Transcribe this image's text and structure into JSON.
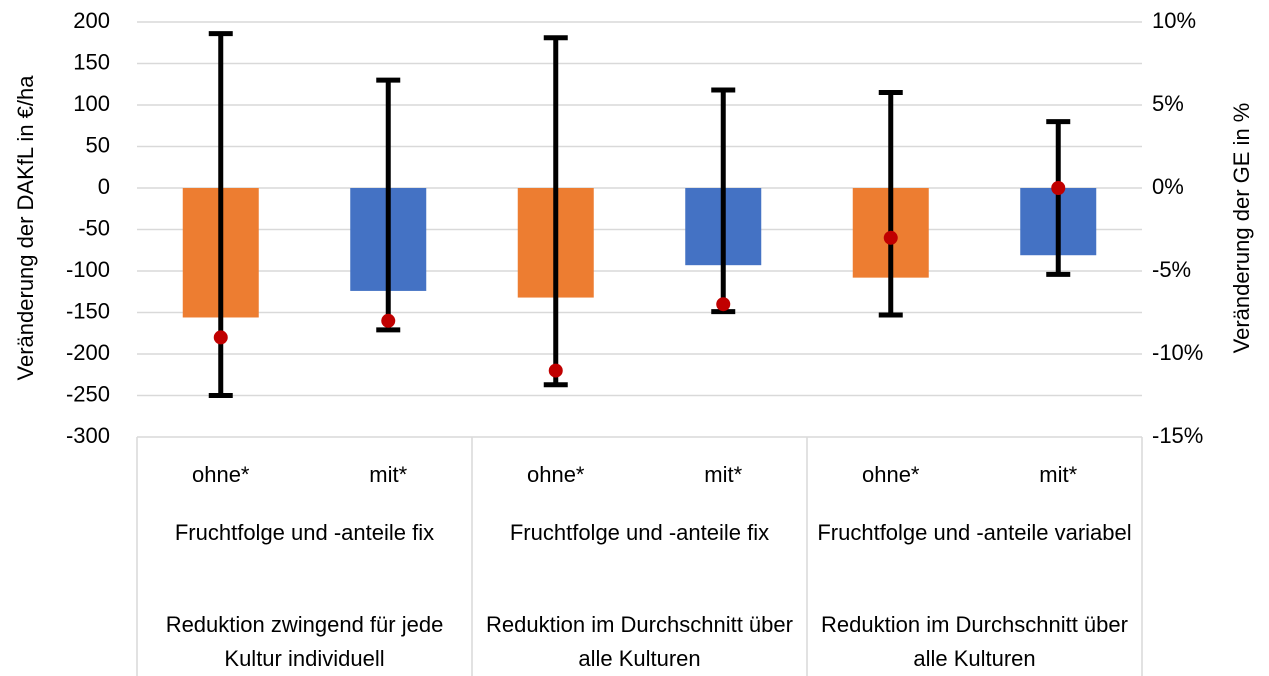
{
  "chart_data": {
    "type": "bar",
    "categories": [
      "ohne*",
      "mit*",
      "ohne*",
      "mit*",
      "ohne*",
      "mit*"
    ],
    "groups_level2": [
      "Fruchtfolge und -anteile fix",
      "Fruchtfolge und -anteile fix",
      "Fruchtfolge und -anteile variabel"
    ],
    "groups_level3": [
      "Reduktion zwingend für jede Kultur individuell",
      "Reduktion im Durchschnitt über alle Kulturen",
      "Reduktion im Durchschnitt über alle Kulturen"
    ],
    "values": [
      -156,
      -124,
      -132,
      -93,
      -108,
      -81
    ],
    "error_high": [
      186,
      130,
      181,
      118,
      115,
      80
    ],
    "error_low": [
      -250,
      -171,
      -237,
      -149,
      -153,
      -104
    ],
    "secondary_values": [
      -9,
      -8,
      -11,
      -7,
      -3,
      0
    ],
    "bar_colors": [
      "#ED7D31",
      "#4472C4",
      "#ED7D31",
      "#4472C4",
      "#ED7D31",
      "#4472C4"
    ],
    "point_color": "#C00000",
    "errorbar_color": "#000000",
    "ylabel": "Veränderung der DAKfL in €/ha",
    "ylabel2": "Veränderung der GE in %",
    "ylim": [
      -300,
      200
    ],
    "ylim2": [
      -15,
      10
    ],
    "yticks": [
      "200",
      "150",
      "100",
      "50",
      "0",
      "-50",
      "-100",
      "-150",
      "-200",
      "-250",
      "-300"
    ],
    "yticks2": [
      "10%",
      "5%",
      "0%",
      "-5%",
      "-10%",
      "-15%"
    ],
    "grid": true
  }
}
